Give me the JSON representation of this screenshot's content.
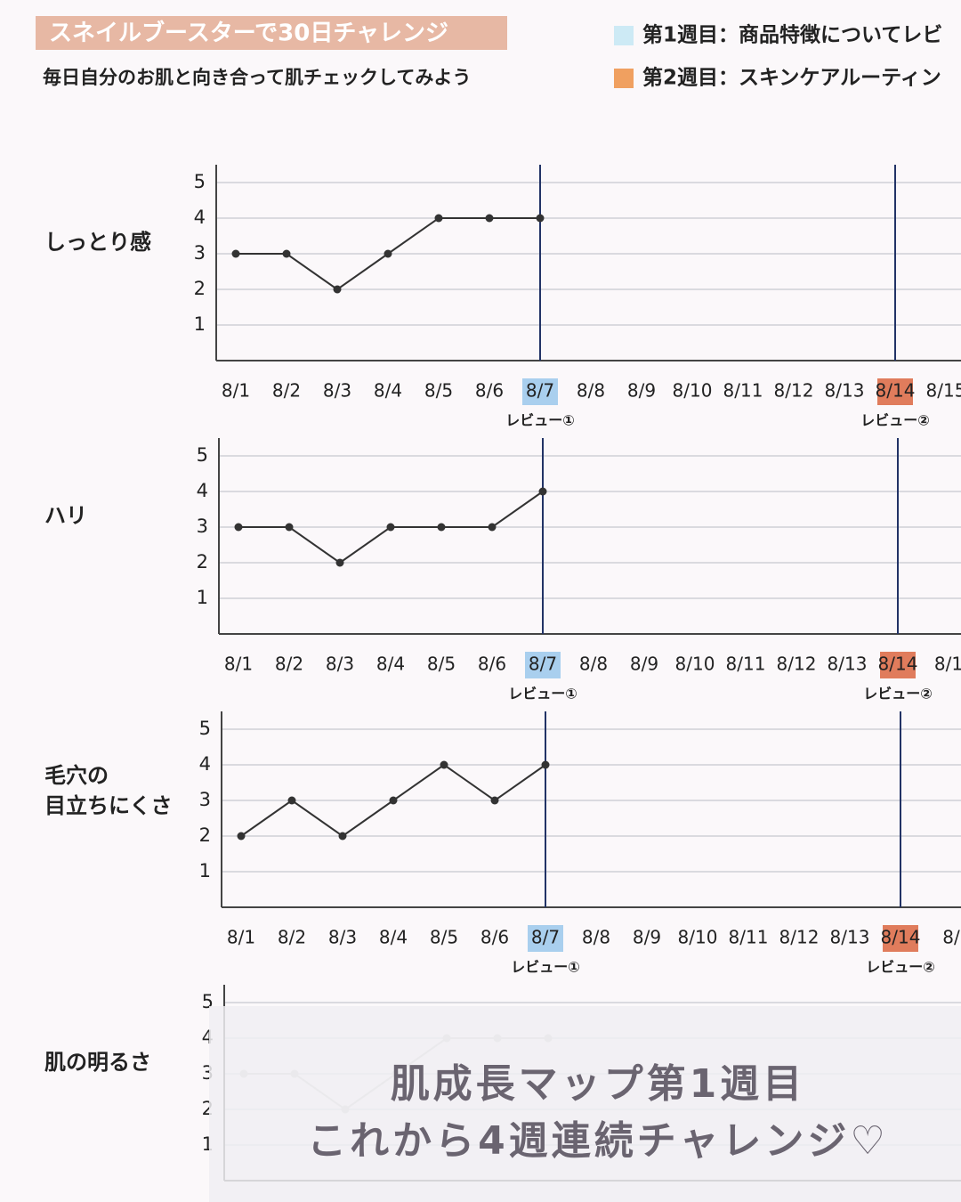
{
  "header": {
    "title": "スネイルブースターで30日チャレンジ",
    "subtitle": "毎日自分のお肌と向き合って肌チェックしてみよう",
    "legend": [
      {
        "name": "第1週目：商品特徴についてレビ",
        "color": "#cdeaf5"
      },
      {
        "name": "第2週目：スキンケアルーティン",
        "color": "#f0a060"
      }
    ]
  },
  "chart_data": [
    {
      "type": "line",
      "ylabel": "しっとり感",
      "categories": [
        "8/1",
        "8/2",
        "8/3",
        "8/4",
        "8/5",
        "8/6",
        "8/7",
        "8/8",
        "8/9",
        "8/10",
        "8/11",
        "8/12",
        "8/13",
        "8/14",
        "8/15"
      ],
      "values": [
        3,
        3,
        2,
        3,
        4,
        4,
        4,
        null,
        null,
        null,
        null,
        null,
        null,
        null,
        null
      ],
      "color": "#333333",
      "ylim": [
        0,
        5.5
      ],
      "yticks": [
        1,
        2,
        3,
        4,
        5
      ],
      "grid": true,
      "markers": [
        {
          "x": "8/7",
          "label": "レビュー①",
          "color": "#a9cfee"
        },
        {
          "x": "8/14",
          "label": "レビュー②",
          "color": "#e07c5c"
        }
      ]
    },
    {
      "type": "line",
      "ylabel": "ハリ",
      "categories": [
        "8/1",
        "8/2",
        "8/3",
        "8/4",
        "8/5",
        "8/6",
        "8/7",
        "8/8",
        "8/9",
        "8/10",
        "8/11",
        "8/12",
        "8/13",
        "8/14",
        "8/1"
      ],
      "values": [
        3,
        3,
        2,
        3,
        3,
        3,
        4,
        null,
        null,
        null,
        null,
        null,
        null,
        null,
        null
      ],
      "color": "#333333",
      "ylim": [
        0,
        5.5
      ],
      "yticks": [
        1,
        2,
        3,
        4,
        5
      ],
      "grid": true,
      "markers": [
        {
          "x": "8/7",
          "label": "レビュー①",
          "color": "#a9cfee"
        },
        {
          "x": "8/14",
          "label": "レビュー②",
          "color": "#e07c5c"
        }
      ]
    },
    {
      "type": "line",
      "ylabel": "毛穴の\n目立ちにくさ",
      "categories": [
        "8/1",
        "8/2",
        "8/3",
        "8/4",
        "8/5",
        "8/6",
        "8/7",
        "8/8",
        "8/9",
        "8/10",
        "8/11",
        "8/12",
        "8/13",
        "8/14",
        "8/"
      ],
      "values": [
        2,
        3,
        2,
        3,
        4,
        3,
        4,
        null,
        null,
        null,
        null,
        null,
        null,
        null,
        null
      ],
      "color": "#333333",
      "ylim": [
        0,
        5.5
      ],
      "yticks": [
        1,
        2,
        3,
        4,
        5
      ],
      "grid": true,
      "markers": [
        {
          "x": "8/7",
          "label": "レビュー①",
          "color": "#a9cfee"
        },
        {
          "x": "8/14",
          "label": "レビュー②",
          "color": "#e07c5c"
        }
      ]
    },
    {
      "type": "line",
      "ylabel": "肌の明るさ",
      "values": [
        3,
        3,
        2,
        3,
        4,
        4,
        4
      ],
      "color": "#c8c8c8",
      "ylim": [
        0,
        5.5
      ],
      "yticks": [
        1,
        2,
        3,
        4,
        5
      ],
      "grid": true
    }
  ],
  "overlay": {
    "lines": [
      "肌成長マップ第1週目",
      "これから4週連続チャレンジ♡"
    ]
  }
}
